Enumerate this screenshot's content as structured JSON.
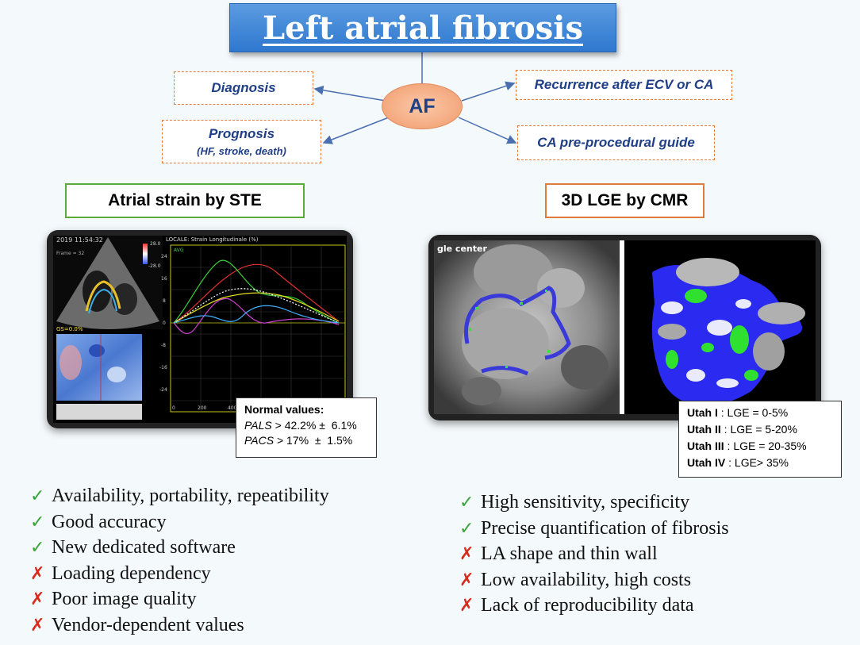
{
  "title": "Left atrial fibrosis",
  "center": "AF",
  "branches": {
    "diagnosis": "Diagnosis",
    "prognosis": "Prognosis",
    "prognosis_sub": "(HF, stroke, death)",
    "recurrence": "Recurrence after ECV or CA",
    "guide": "CA pre-procedural guide"
  },
  "colors": {
    "title_bg": "#3a84d6",
    "dark_blue": "#1f3f86",
    "orange": "#e07b3c",
    "green": "#5aab3c",
    "check": "#3aa33a",
    "cross": "#d62b1e"
  },
  "left": {
    "header": "Atrial strain by STE",
    "screen": {
      "timestamp": "2019 11:54:32",
      "frame": "Frame = 32",
      "scale_top": "28.0",
      "scale_bottom": "-28.0",
      "gs": "GS=0.0%",
      "chart_title": "LOCALE: Strain Longitudinale (%)",
      "avg": "AVG",
      "y_ticks": [
        "24",
        "16",
        "8",
        "0",
        "-8",
        "-16",
        "-24"
      ],
      "x_ticks": [
        "0",
        "200",
        "400"
      ]
    },
    "normal_values": {
      "heading": "Normal values:",
      "pals_label": "PALS",
      "pals_value": " > 42.2% ±  6.1%",
      "pacs_label": "PACS",
      "pacs_value": " > 17%  ±  1.5%"
    },
    "bullets": [
      {
        "mark": "check-icon",
        "text": "Availability, portability, repeatibility"
      },
      {
        "mark": "check-icon",
        "text": "Good accuracy"
      },
      {
        "mark": "check-icon",
        "text": "New dedicated software"
      },
      {
        "mark": "cross-icon",
        "text": "Loading dependency"
      },
      {
        "mark": "cross-icon",
        "text": "Poor image quality"
      },
      {
        "mark": "cross-icon",
        "text": "Vendor-dependent values"
      }
    ]
  },
  "right": {
    "header": "3D LGE by CMR",
    "screen_label": "gle center",
    "utah": [
      {
        "stage": "Utah I",
        "value": " : LGE = 0-5%"
      },
      {
        "stage": "Utah II",
        "value": " : LGE = 5-20%"
      },
      {
        "stage": "Utah III",
        "value": " : LGE = 20-35%"
      },
      {
        "stage": "Utah IV",
        "value": " : LGE> 35%"
      }
    ],
    "bullets": [
      {
        "mark": "check-icon",
        "text": "High sensitivity, specificity"
      },
      {
        "mark": "check-icon",
        "text": "Precise quantification of fibrosis"
      },
      {
        "mark": "cross-icon",
        "text": "LA shape and thin wall"
      },
      {
        "mark": "cross-icon",
        "text": "Low availability, high costs"
      },
      {
        "mark": "cross-icon",
        "text": "Lack of reproducibility data"
      }
    ]
  }
}
